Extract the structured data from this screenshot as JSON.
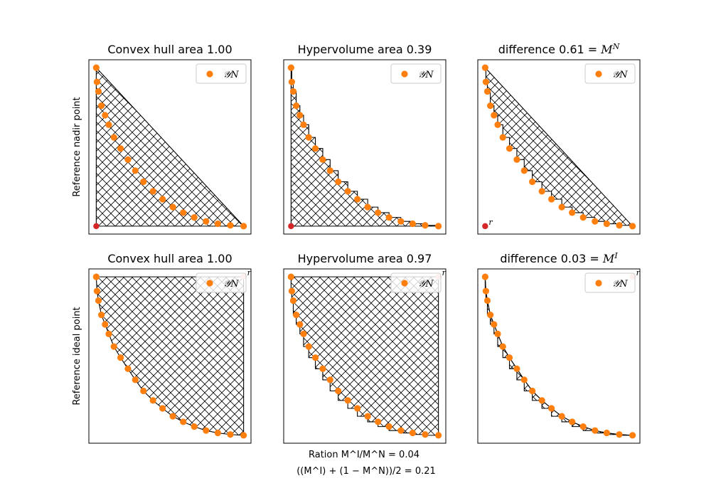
{
  "chart_data": [
    {
      "type": "scatter",
      "title": "Convex hull area 1.00",
      "ylabel": "Reference nadir point",
      "reference": "nadir",
      "region": "convex-hull",
      "legend": "𝒴N",
      "legend_position": "top-right",
      "grid": false,
      "ref_label": "",
      "xlim": [
        -0.05,
        1.05
      ],
      "ylim": [
        -0.05,
        1.05
      ],
      "points": [
        [
          0.0,
          1.0
        ],
        [
          0.005,
          0.91
        ],
        [
          0.015,
          0.85
        ],
        [
          0.035,
          0.76
        ],
        [
          0.06,
          0.7
        ],
        [
          0.085,
          0.64
        ],
        [
          0.12,
          0.56
        ],
        [
          0.165,
          0.49
        ],
        [
          0.215,
          0.42
        ],
        [
          0.265,
          0.35
        ],
        [
          0.32,
          0.28
        ],
        [
          0.385,
          0.22
        ],
        [
          0.45,
          0.17
        ],
        [
          0.52,
          0.12
        ],
        [
          0.59,
          0.085
        ],
        [
          0.665,
          0.055
        ],
        [
          0.745,
          0.03
        ],
        [
          0.825,
          0.015
        ],
        [
          0.91,
          0.005
        ],
        [
          1.0,
          0.0
        ]
      ],
      "ref_point": [
        0.0,
        0.0
      ]
    },
    {
      "type": "scatter",
      "title": "Hypervolume area 0.39",
      "ylabel": "",
      "reference": "nadir",
      "region": "hypervolume",
      "legend": "𝒴N",
      "legend_position": "top-right",
      "grid": false,
      "ref_label": "",
      "xlim": [
        -0.05,
        1.05
      ],
      "ylim": [
        -0.05,
        1.05
      ],
      "points": [
        [
          0.0,
          1.0
        ],
        [
          0.005,
          0.91
        ],
        [
          0.015,
          0.85
        ],
        [
          0.035,
          0.76
        ],
        [
          0.06,
          0.7
        ],
        [
          0.085,
          0.64
        ],
        [
          0.12,
          0.56
        ],
        [
          0.165,
          0.49
        ],
        [
          0.215,
          0.42
        ],
        [
          0.265,
          0.35
        ],
        [
          0.32,
          0.28
        ],
        [
          0.385,
          0.22
        ],
        [
          0.45,
          0.17
        ],
        [
          0.52,
          0.12
        ],
        [
          0.59,
          0.085
        ],
        [
          0.665,
          0.055
        ],
        [
          0.745,
          0.03
        ],
        [
          0.825,
          0.015
        ],
        [
          0.91,
          0.005
        ],
        [
          1.0,
          0.0
        ]
      ],
      "ref_point": [
        0.0,
        0.0
      ]
    },
    {
      "type": "scatter",
      "title": "difference 0.61 = ",
      "title_math": "M",
      "title_sup": "N",
      "ylabel": "",
      "reference": "nadir",
      "region": "difference",
      "legend": "𝒴N",
      "legend_position": "top-right",
      "grid": false,
      "ref_label": "r",
      "xlim": [
        -0.05,
        1.05
      ],
      "ylim": [
        -0.05,
        1.05
      ],
      "points": [
        [
          0.0,
          1.0
        ],
        [
          0.005,
          0.91
        ],
        [
          0.015,
          0.85
        ],
        [
          0.035,
          0.76
        ],
        [
          0.06,
          0.7
        ],
        [
          0.085,
          0.64
        ],
        [
          0.12,
          0.56
        ],
        [
          0.165,
          0.49
        ],
        [
          0.215,
          0.42
        ],
        [
          0.265,
          0.35
        ],
        [
          0.32,
          0.28
        ],
        [
          0.385,
          0.22
        ],
        [
          0.45,
          0.17
        ],
        [
          0.52,
          0.12
        ],
        [
          0.59,
          0.085
        ],
        [
          0.665,
          0.055
        ],
        [
          0.745,
          0.03
        ],
        [
          0.825,
          0.015
        ],
        [
          0.91,
          0.005
        ],
        [
          1.0,
          0.0
        ]
      ],
      "ref_point": [
        0.0,
        0.0
      ]
    },
    {
      "type": "scatter",
      "title": "Convex hull area 1.00",
      "ylabel": "Reference ideal point",
      "reference": "ideal",
      "region": "convex-hull",
      "legend": "𝒴N",
      "legend_position": "top-right",
      "grid": false,
      "ref_label": "r",
      "xlim": [
        -0.05,
        1.05
      ],
      "ylim": [
        -0.05,
        1.05
      ],
      "points": [
        [
          0.0,
          1.0
        ],
        [
          0.005,
          0.91
        ],
        [
          0.015,
          0.85
        ],
        [
          0.035,
          0.76
        ],
        [
          0.06,
          0.7
        ],
        [
          0.085,
          0.64
        ],
        [
          0.12,
          0.56
        ],
        [
          0.165,
          0.49
        ],
        [
          0.215,
          0.42
        ],
        [
          0.265,
          0.35
        ],
        [
          0.32,
          0.28
        ],
        [
          0.385,
          0.22
        ],
        [
          0.45,
          0.17
        ],
        [
          0.52,
          0.12
        ],
        [
          0.59,
          0.085
        ],
        [
          0.665,
          0.055
        ],
        [
          0.745,
          0.03
        ],
        [
          0.825,
          0.015
        ],
        [
          0.91,
          0.005
        ],
        [
          1.0,
          0.0
        ]
      ],
      "ref_point": [
        1.0,
        1.0
      ]
    },
    {
      "type": "scatter",
      "title": "Hypervolume area 0.97",
      "ylabel": "",
      "reference": "ideal",
      "region": "hypervolume",
      "legend": "𝒴N",
      "legend_position": "top-right",
      "grid": false,
      "ref_label": "r",
      "xlim": [
        -0.05,
        1.05
      ],
      "ylim": [
        -0.05,
        1.05
      ],
      "points": [
        [
          0.0,
          1.0
        ],
        [
          0.005,
          0.91
        ],
        [
          0.015,
          0.85
        ],
        [
          0.035,
          0.76
        ],
        [
          0.06,
          0.7
        ],
        [
          0.085,
          0.64
        ],
        [
          0.12,
          0.56
        ],
        [
          0.165,
          0.49
        ],
        [
          0.215,
          0.42
        ],
        [
          0.265,
          0.35
        ],
        [
          0.32,
          0.28
        ],
        [
          0.385,
          0.22
        ],
        [
          0.45,
          0.17
        ],
        [
          0.52,
          0.12
        ],
        [
          0.59,
          0.085
        ],
        [
          0.665,
          0.055
        ],
        [
          0.745,
          0.03
        ],
        [
          0.825,
          0.015
        ],
        [
          0.91,
          0.005
        ],
        [
          1.0,
          0.0
        ]
      ],
      "ref_point": [
        1.0,
        1.0
      ]
    },
    {
      "type": "scatter",
      "title": "difference 0.03 = ",
      "title_math": "M",
      "title_sup": "I",
      "ylabel": "",
      "reference": "ideal",
      "region": "difference",
      "legend": "𝒴N",
      "legend_position": "top-right",
      "grid": false,
      "ref_label": "r",
      "xlim": [
        -0.05,
        1.05
      ],
      "ylim": [
        -0.05,
        1.05
      ],
      "points": [
        [
          0.0,
          1.0
        ],
        [
          0.005,
          0.91
        ],
        [
          0.015,
          0.85
        ],
        [
          0.035,
          0.76
        ],
        [
          0.06,
          0.7
        ],
        [
          0.085,
          0.64
        ],
        [
          0.12,
          0.56
        ],
        [
          0.165,
          0.49
        ],
        [
          0.215,
          0.42
        ],
        [
          0.265,
          0.35
        ],
        [
          0.32,
          0.28
        ],
        [
          0.385,
          0.22
        ],
        [
          0.45,
          0.17
        ],
        [
          0.52,
          0.12
        ],
        [
          0.59,
          0.085
        ],
        [
          0.665,
          0.055
        ],
        [
          0.745,
          0.03
        ],
        [
          0.825,
          0.015
        ],
        [
          0.91,
          0.005
        ],
        [
          1.0,
          0.0
        ]
      ],
      "ref_point": [
        1.0,
        1.0
      ]
    }
  ],
  "caption": {
    "line1": "Ration M^I/M^N = 0.04",
    "line2": "((M^I) + (1 − M^N))/2 = 0.21"
  },
  "colors": {
    "points": "#ff7f0e",
    "nadir_ref": "#d62728",
    "ideal_ref": "#ffb3b3",
    "hatch": "#000000"
  }
}
